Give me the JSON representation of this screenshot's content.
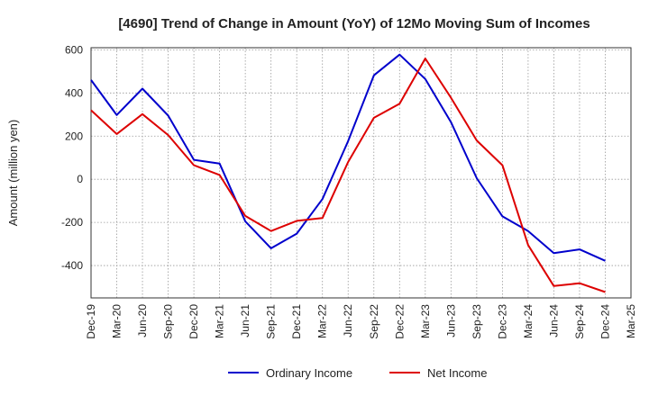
{
  "chart_data": {
    "type": "line",
    "title": "[4690]  Trend of Change in Amount (YoY) of 12Mo Moving Sum of Incomes",
    "ylabel": "Amount (million yen)",
    "xlabel": "",
    "ylim": [
      -550,
      610
    ],
    "yticks": [
      600,
      400,
      200,
      0,
      -200,
      -400
    ],
    "categories": [
      "Dec-19",
      "Mar-20",
      "Jun-20",
      "Sep-20",
      "Dec-20",
      "Mar-21",
      "Jun-21",
      "Sep-21",
      "Dec-21",
      "Mar-22",
      "Jun-22",
      "Sep-22",
      "Dec-22",
      "Mar-23",
      "Jun-23",
      "Sep-23",
      "Dec-23",
      "Mar-24",
      "Jun-24",
      "Sep-24",
      "Dec-24",
      "Mar-25"
    ],
    "series": [
      {
        "name": "Ordinary Income",
        "color": "#0000cc",
        "values": [
          460,
          298,
          420,
          295,
          90,
          73,
          -195,
          -320,
          -252,
          -92,
          177,
          482,
          578,
          465,
          265,
          5,
          -172,
          -240,
          -342,
          -325,
          -378,
          null
        ]
      },
      {
        "name": "Net Income",
        "color": "#dd0000",
        "values": [
          320,
          210,
          302,
          205,
          65,
          20,
          -170,
          -240,
          -193,
          -180,
          80,
          285,
          350,
          560,
          378,
          180,
          65,
          -305,
          -495,
          -482,
          -523,
          null
        ]
      }
    ],
    "legend_position": "bottom",
    "grid": true
  }
}
